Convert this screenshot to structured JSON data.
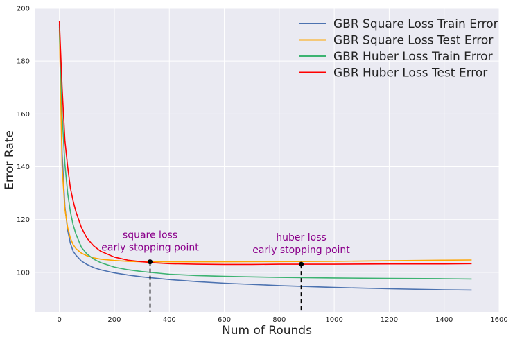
{
  "chart_data": {
    "type": "line",
    "xlabel": "Num of Rounds",
    "ylabel": "Error Rate",
    "xlim": [
      -90,
      1600
    ],
    "ylim": [
      85,
      200
    ],
    "xticks": [
      0,
      200,
      400,
      600,
      800,
      1000,
      1200,
      1400,
      1600
    ],
    "yticks": [
      100,
      120,
      140,
      160,
      180,
      200
    ],
    "grid": true,
    "legend_position": "top-right",
    "background": "#eaeaf2",
    "series": [
      {
        "name": "GBR Square Loss Train Error",
        "color": "#4c72b0",
        "x": [
          0,
          10,
          20,
          30,
          40,
          50,
          60,
          80,
          100,
          125,
          150,
          200,
          250,
          300,
          400,
          500,
          600,
          800,
          1000,
          1200,
          1400,
          1500
        ],
        "y": [
          194,
          145,
          125,
          116,
          111,
          108,
          106.5,
          104.3,
          103,
          101.8,
          101,
          99.8,
          99,
          98.3,
          97.3,
          96.5,
          95.9,
          95.0,
          94.3,
          93.8,
          93.4,
          93.3
        ]
      },
      {
        "name": "GBR Square Loss Test Error",
        "color": "#ffa500",
        "x": [
          0,
          10,
          20,
          30,
          40,
          50,
          60,
          80,
          100,
          125,
          150,
          200,
          250,
          300,
          330,
          400,
          500,
          600,
          800,
          1000,
          1200,
          1400,
          1500
        ],
        "y": [
          192,
          140,
          124,
          117,
          113,
          110.5,
          109,
          107.3,
          106.3,
          105.5,
          105,
          104.5,
          104.2,
          104.0,
          104.0,
          104.0,
          104.0,
          104.0,
          104.1,
          104.2,
          104.4,
          104.6,
          104.7
        ]
      },
      {
        "name": "GBR Huber Loss Train Error",
        "color": "#3cb371",
        "x": [
          0,
          10,
          20,
          30,
          40,
          50,
          60,
          80,
          100,
          125,
          150,
          200,
          250,
          300,
          400,
          500,
          600,
          800,
          1000,
          1200,
          1400,
          1500
        ],
        "y": [
          193,
          160,
          141,
          130,
          123,
          118,
          114.5,
          109.5,
          107,
          105,
          103.7,
          102.0,
          101.0,
          100.3,
          99.3,
          98.8,
          98.5,
          98.1,
          97.9,
          97.7,
          97.6,
          97.5
        ]
      },
      {
        "name": "GBR Huber Loss Test Error",
        "color": "#ff0000",
        "x": [
          0,
          10,
          20,
          30,
          40,
          50,
          60,
          80,
          100,
          125,
          150,
          200,
          250,
          300,
          350,
          400,
          500,
          600,
          700,
          800,
          880,
          1000,
          1200,
          1400,
          1500
        ],
        "y": [
          195,
          170,
          150,
          140,
          132,
          127,
          123,
          117,
          113,
          110,
          108,
          105.8,
          104.6,
          104.0,
          103.6,
          103.3,
          103.1,
          103.0,
          103.0,
          103.1,
          103.1,
          103.1,
          103.2,
          103.2,
          103.3
        ]
      }
    ],
    "annotations": [
      {
        "line1": "square loss",
        "line2": "early stopping point",
        "x": 330,
        "y": 104.0,
        "color": "#8b008b"
      },
      {
        "line1": "huber loss",
        "line2": "early stopping point",
        "x": 880,
        "y": 103.1,
        "color": "#8b008b"
      }
    ]
  }
}
